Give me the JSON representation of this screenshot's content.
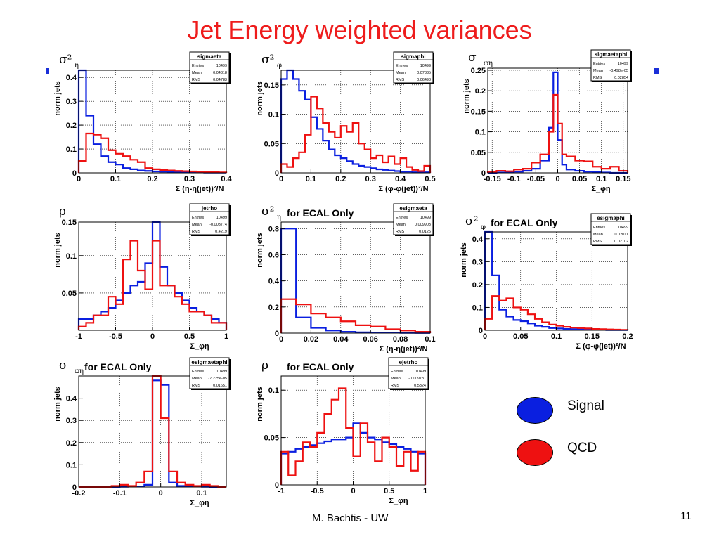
{
  "slide": {
    "title": "Jet Energy weighted variances",
    "footer": "M. Bachtis - UW",
    "page_number": "11"
  },
  "legend": {
    "signal_label": "Signal",
    "signal_color": "#0a1fe0",
    "qcd_label": "QCD",
    "qcd_color": "#ee1111"
  },
  "colors": {
    "signal": "#0a1fe0",
    "qcd": "#ee1111",
    "title": "#ee1c1c"
  },
  "chart_data": [
    {
      "type": "histogram",
      "name": "sigmaeta",
      "ylabel": "norm jets",
      "xlabel": "Σ (η-η(jet))²/N",
      "symbol_main": "σ²",
      "symbol_sub": "η",
      "stats": {
        "Entries": "10499",
        "Mean": "0.04318",
        "RMS": "0.04783"
      },
      "xlim": [
        0,
        0.4
      ],
      "ylim": [
        0,
        0.43
      ],
      "xticks": [
        0,
        0.1,
        0.2,
        0.3,
        0.4
      ],
      "xticklabels": [
        "0",
        "0.1",
        "0.2",
        "0.3",
        "0.4"
      ],
      "yticks": [
        0,
        0.1,
        0.2,
        0.3,
        0.4
      ],
      "yticklabels": [
        "0",
        "0.1",
        "0.2",
        "0.3",
        "0.4"
      ],
      "bins": [
        0,
        0.02,
        0.04,
        0.06,
        0.08,
        0.1,
        0.12,
        0.14,
        0.16,
        0.18,
        0.2,
        0.22,
        0.24,
        0.26,
        0.28,
        0.3,
        0.32,
        0.34,
        0.36,
        0.38,
        0.4
      ],
      "series": [
        {
          "name": "Signal",
          "color": "#0a1fe0",
          "values": [
            0.43,
            0.24,
            0.12,
            0.07,
            0.045,
            0.035,
            0.02,
            0.015,
            0.01,
            0.008,
            0.006,
            0.005,
            0.004,
            0.003,
            0.003,
            0.002,
            0.002,
            0.001,
            0.001,
            0.001
          ]
        },
        {
          "name": "QCD",
          "color": "#ee1111",
          "values": [
            0.05,
            0.165,
            0.16,
            0.145,
            0.095,
            0.08,
            0.07,
            0.055,
            0.045,
            0.02,
            0.015,
            0.012,
            0.01,
            0.008,
            0.007,
            0.006,
            0.005,
            0.004,
            0.003,
            0.002
          ]
        }
      ]
    },
    {
      "type": "histogram",
      "name": "sigmaphi",
      "ylabel": "norm jets",
      "xlabel": "Σ (φ-φ(jet))²/N",
      "symbol_main": "σ²",
      "symbol_sub": "φ",
      "stats": {
        "Entries": "10499",
        "Mean": "0.07835",
        "RMS": "0.06498"
      },
      "xlim": [
        0,
        0.5
      ],
      "ylim": [
        0,
        0.175
      ],
      "xticks": [
        0,
        0.1,
        0.2,
        0.3,
        0.4,
        0.5
      ],
      "xticklabels": [
        "0",
        "0.1",
        "0.2",
        "0.3",
        "0.4",
        "0.5"
      ],
      "yticks": [
        0,
        0.05,
        0.1,
        0.15
      ],
      "yticklabels": [
        "0",
        "0.05",
        "0.1",
        "0.15"
      ],
      "bins": [
        0,
        0.02,
        0.04,
        0.06,
        0.08,
        0.1,
        0.12,
        0.14,
        0.16,
        0.18,
        0.2,
        0.22,
        0.24,
        0.26,
        0.28,
        0.3,
        0.32,
        0.34,
        0.36,
        0.38,
        0.4,
        0.42,
        0.44,
        0.46,
        0.48,
        0.5
      ],
      "series": [
        {
          "name": "Signal",
          "color": "#0a1fe0",
          "values": [
            0.16,
            0.175,
            0.16,
            0.14,
            0.125,
            0.095,
            0.075,
            0.055,
            0.04,
            0.03,
            0.025,
            0.02,
            0.015,
            0.012,
            0.01,
            0.008,
            0.006,
            0.005,
            0.004,
            0.003,
            0.002,
            0.002,
            0.001,
            0.001,
            0.001
          ]
        },
        {
          "name": "QCD",
          "color": "#ee1111",
          "values": [
            0.015,
            0.01,
            0.025,
            0.035,
            0.065,
            0.13,
            0.11,
            0.085,
            0.07,
            0.06,
            0.08,
            0.07,
            0.085,
            0.05,
            0.04,
            0.025,
            0.03,
            0.018,
            0.028,
            0.015,
            0.025,
            0.01,
            0.005,
            0.003,
            0.012
          ]
        }
      ]
    },
    {
      "type": "histogram",
      "name": "sigmaetaphi",
      "ylabel": "norm jets",
      "xlabel": "Σ_φη",
      "symbol_main": "σ",
      "symbol_sub": "φη",
      "stats": {
        "Entries": "10499",
        "Mean": "-0.498e-05",
        "RMS": "0.02854"
      },
      "xlim": [
        -0.16,
        0.16
      ],
      "ylim": [
        0,
        0.255
      ],
      "xticks": [
        -0.15,
        -0.1,
        -0.05,
        0,
        0.05,
        0.1,
        0.15
      ],
      "xticklabels": [
        "-0.15",
        "-0.1",
        "-0.05",
        "0",
        "0.05",
        "0.1",
        "0.15"
      ],
      "yticks": [
        0,
        0.05,
        0.1,
        0.15,
        0.2,
        0.25
      ],
      "yticklabels": [
        "0",
        "0.05",
        "0.1",
        "0.15",
        "0.2",
        "0.25"
      ],
      "bins": [
        -0.16,
        -0.14,
        -0.12,
        -0.1,
        -0.08,
        -0.06,
        -0.04,
        -0.02,
        -0.01,
        0,
        0.01,
        0.02,
        0.04,
        0.06,
        0.08,
        0.1,
        0.12,
        0.14,
        0.16
      ],
      "series": [
        {
          "name": "Signal",
          "color": "#0a1fe0",
          "values": [
            0,
            0.001,
            0.002,
            0.003,
            0.005,
            0.01,
            0.03,
            0.11,
            0.245,
            0.08,
            0.02,
            0.008,
            0.005,
            0.003,
            0.002,
            0.001,
            0,
            0
          ]
        },
        {
          "name": "QCD",
          "color": "#ee1111",
          "values": [
            0.003,
            0.005,
            0.004,
            0.008,
            0.01,
            0.025,
            0.045,
            0.1,
            0.19,
            0.12,
            0.045,
            0.04,
            0.03,
            0.028,
            0.015,
            0.01,
            0.015,
            0.005
          ]
        }
      ]
    },
    {
      "type": "histogram",
      "name": "jetrho",
      "ylabel": "norm jets",
      "xlabel": "Σ_φη",
      "symbol_main": "ρ",
      "symbol_sub": "",
      "stats": {
        "Entries": "10499",
        "Mean": "-0.003774",
        "RMS": "0.4219"
      },
      "xlim": [
        -1,
        1
      ],
      "ylim": [
        0,
        0.145
      ],
      "xticks": [
        -1,
        -0.5,
        0,
        0.5,
        1
      ],
      "xticklabels": [
        "-1",
        "-0.5",
        "0",
        "0.5",
        "1"
      ],
      "yticks": [
        0.05,
        0.1,
        0.15
      ],
      "yticklabels": [
        "0.05",
        "0.1",
        "0.15"
      ],
      "bins": [
        -1,
        -0.9,
        -0.8,
        -0.7,
        -0.6,
        -0.5,
        -0.4,
        -0.3,
        -0.2,
        -0.1,
        0,
        0.1,
        0.2,
        0.3,
        0.4,
        0.5,
        0.6,
        0.7,
        0.8,
        0.9,
        1
      ],
      "series": [
        {
          "name": "Signal",
          "color": "#0a1fe0",
          "values": [
            0.015,
            0.015,
            0.02,
            0.025,
            0.03,
            0.04,
            0.05,
            0.06,
            0.065,
            0.09,
            0.145,
            0.085,
            0.06,
            0.05,
            0.04,
            0.03,
            0.025,
            0.02,
            0.015,
            0.01
          ]
        },
        {
          "name": "QCD",
          "color": "#ee1111",
          "values": [
            0.005,
            0.01,
            0.02,
            0.02,
            0.045,
            0.035,
            0.095,
            0.12,
            0.08,
            0.055,
            0.12,
            0.06,
            0.06,
            0.045,
            0.035,
            0.025,
            0.025,
            0.02,
            0.01,
            0.01
          ]
        }
      ]
    },
    {
      "type": "histogram",
      "name": "esigmaeta",
      "ylabel": "norm jets",
      "xlabel": "Σ (η-η(jet))²/N",
      "symbol_main": "σ²",
      "symbol_sub": "η",
      "annotation": "for ECAL Only",
      "stats": {
        "Entries": "10499",
        "Mean": "0.009903",
        "RMS": "0.0125"
      },
      "xlim": [
        0,
        0.1
      ],
      "ylim": [
        0,
        0.85
      ],
      "xticks": [
        0,
        0.02,
        0.04,
        0.06,
        0.08,
        0.1
      ],
      "xticklabels": [
        "0",
        "0.02",
        "0.04",
        "0.06",
        "0.08",
        "0.1"
      ],
      "yticks": [
        0,
        0.2,
        0.4,
        0.6,
        0.8
      ],
      "yticklabels": [
        "0",
        "0.2",
        "0.4",
        "0.6",
        "0.8"
      ],
      "bins": [
        0,
        0.01,
        0.02,
        0.03,
        0.04,
        0.05,
        0.06,
        0.07,
        0.08,
        0.09,
        0.1
      ],
      "series": [
        {
          "name": "Signal",
          "color": "#0a1fe0",
          "values": [
            0.8,
            0.12,
            0.04,
            0.02,
            0.01,
            0.006,
            0.004,
            0.003,
            0.002,
            0.001
          ]
        },
        {
          "name": "QCD",
          "color": "#ee1111",
          "values": [
            0.26,
            0.22,
            0.15,
            0.12,
            0.09,
            0.06,
            0.05,
            0.03,
            0.02,
            0.01
          ]
        }
      ]
    },
    {
      "type": "histogram",
      "name": "esigmaphi",
      "ylabel": "norm jets",
      "xlabel": "Σ (φ-φ(jet))²/N",
      "symbol_main": "σ²",
      "symbol_sub": "φ",
      "annotation": "for ECAL Only",
      "stats": {
        "Entries": "10499",
        "Mean": "0.02011",
        "RMS": "0.02102"
      },
      "xlim": [
        0,
        0.2
      ],
      "ylim": [
        0,
        0.43
      ],
      "xticks": [
        0,
        0.05,
        0.1,
        0.15,
        0.2
      ],
      "xticklabels": [
        "0",
        "0.05",
        "0.1",
        "0.15",
        "0.2"
      ],
      "yticks": [
        0,
        0.1,
        0.2,
        0.3,
        0.4
      ],
      "yticklabels": [
        "0",
        "0.1",
        "0.2",
        "0.3",
        "0.4"
      ],
      "bins": [
        0,
        0.01,
        0.02,
        0.03,
        0.04,
        0.05,
        0.06,
        0.07,
        0.08,
        0.09,
        0.1,
        0.11,
        0.12,
        0.13,
        0.14,
        0.15,
        0.16,
        0.17,
        0.18,
        0.19,
        0.2
      ],
      "series": [
        {
          "name": "Signal",
          "color": "#0a1fe0",
          "values": [
            0.43,
            0.24,
            0.09,
            0.06,
            0.045,
            0.04,
            0.03,
            0.02,
            0.015,
            0.01,
            0.008,
            0.006,
            0.005,
            0.004,
            0.003,
            0.002,
            0.002,
            0.001,
            0.001,
            0.001
          ]
        },
        {
          "name": "QCD",
          "color": "#ee1111",
          "values": [
            0.05,
            0.15,
            0.13,
            0.14,
            0.1,
            0.09,
            0.07,
            0.05,
            0.035,
            0.025,
            0.02,
            0.015,
            0.012,
            0.01,
            0.008,
            0.006,
            0.005,
            0.004,
            0.003,
            0.002
          ]
        }
      ]
    },
    {
      "type": "histogram",
      "name": "esigmaetaphi",
      "ylabel": "norm jets",
      "xlabel": "Σ_φη",
      "symbol_main": "σ",
      "symbol_sub": "φη",
      "annotation": "for ECAL Only",
      "stats": {
        "Entries": "10499",
        "Mean": "-7.225e-05",
        "RMS": "0.01651"
      },
      "xlim": [
        -0.2,
        0.16
      ],
      "ylim": [
        0,
        0.5
      ],
      "xticks": [
        -0.2,
        -0.1,
        0,
        0.1
      ],
      "xticklabels": [
        "-0.2",
        "-0.1",
        "0",
        "0.1"
      ],
      "yticks": [
        0,
        0.1,
        0.2,
        0.3,
        0.4
      ],
      "yticklabels": [
        "0",
        "0.1",
        "0.2",
        "0.3",
        "0.4"
      ],
      "bins": [
        -0.2,
        -0.18,
        -0.16,
        -0.14,
        -0.12,
        -0.1,
        -0.08,
        -0.06,
        -0.04,
        -0.02,
        0,
        0.02,
        0.04,
        0.06,
        0.08,
        0.1,
        0.12,
        0.14,
        0.16
      ],
      "series": [
        {
          "name": "Signal",
          "color": "#0a1fe0",
          "values": [
            0,
            0,
            0,
            0,
            0,
            0.001,
            0.002,
            0.003,
            0.01,
            0.48,
            0.46,
            0.02,
            0.005,
            0.003,
            0.002,
            0.001,
            0,
            0
          ]
        },
        {
          "name": "QCD",
          "color": "#ee1111",
          "values": [
            0,
            0,
            0,
            0,
            0.005,
            0.01,
            0.005,
            0.02,
            0.07,
            0.5,
            0.31,
            0.07,
            0.02,
            0.01,
            0.005,
            0.01,
            0.005,
            0
          ]
        }
      ]
    },
    {
      "type": "histogram",
      "name": "ejetrho",
      "ylabel": "norm jets",
      "xlabel": "Σ_φη",
      "symbol_main": "ρ",
      "symbol_sub": "",
      "annotation": "for ECAL Only",
      "stats": {
        "Entries": "10499",
        "Mean": "-0.009781",
        "RMS": "0.5324"
      },
      "xlim": [
        -1,
        1
      ],
      "ylim": [
        0,
        0.115
      ],
      "xticks": [
        -1,
        -0.5,
        0,
        0.5,
        1
      ],
      "xticklabels": [
        "-1",
        "-0.5",
        "0",
        "0.5",
        "1"
      ],
      "yticks": [
        0,
        0.05,
        0.1
      ],
      "yticklabels": [
        "0",
        "0.05",
        "0.1"
      ],
      "bins": [
        -1,
        -0.9,
        -0.8,
        -0.7,
        -0.6,
        -0.5,
        -0.4,
        -0.3,
        -0.2,
        -0.1,
        0,
        0.1,
        0.2,
        0.3,
        0.4,
        0.5,
        0.6,
        0.7,
        0.8,
        0.9,
        1
      ],
      "series": [
        {
          "name": "Signal",
          "color": "#0a1fe0",
          "values": [
            0.033,
            0.035,
            0.038,
            0.04,
            0.042,
            0.044,
            0.046,
            0.048,
            0.048,
            0.05,
            0.065,
            0.055,
            0.05,
            0.048,
            0.045,
            0.043,
            0.04,
            0.038,
            0.035,
            0.033
          ]
        },
        {
          "name": "QCD",
          "color": "#ee1111",
          "values": [
            0.035,
            0.01,
            0.025,
            0.045,
            0.04,
            0.055,
            0.075,
            0.09,
            0.102,
            0.06,
            0.03,
            0.065,
            0.045,
            0.025,
            0.05,
            0.04,
            0.02,
            0.035,
            0.015,
            0.035
          ]
        }
      ]
    }
  ]
}
